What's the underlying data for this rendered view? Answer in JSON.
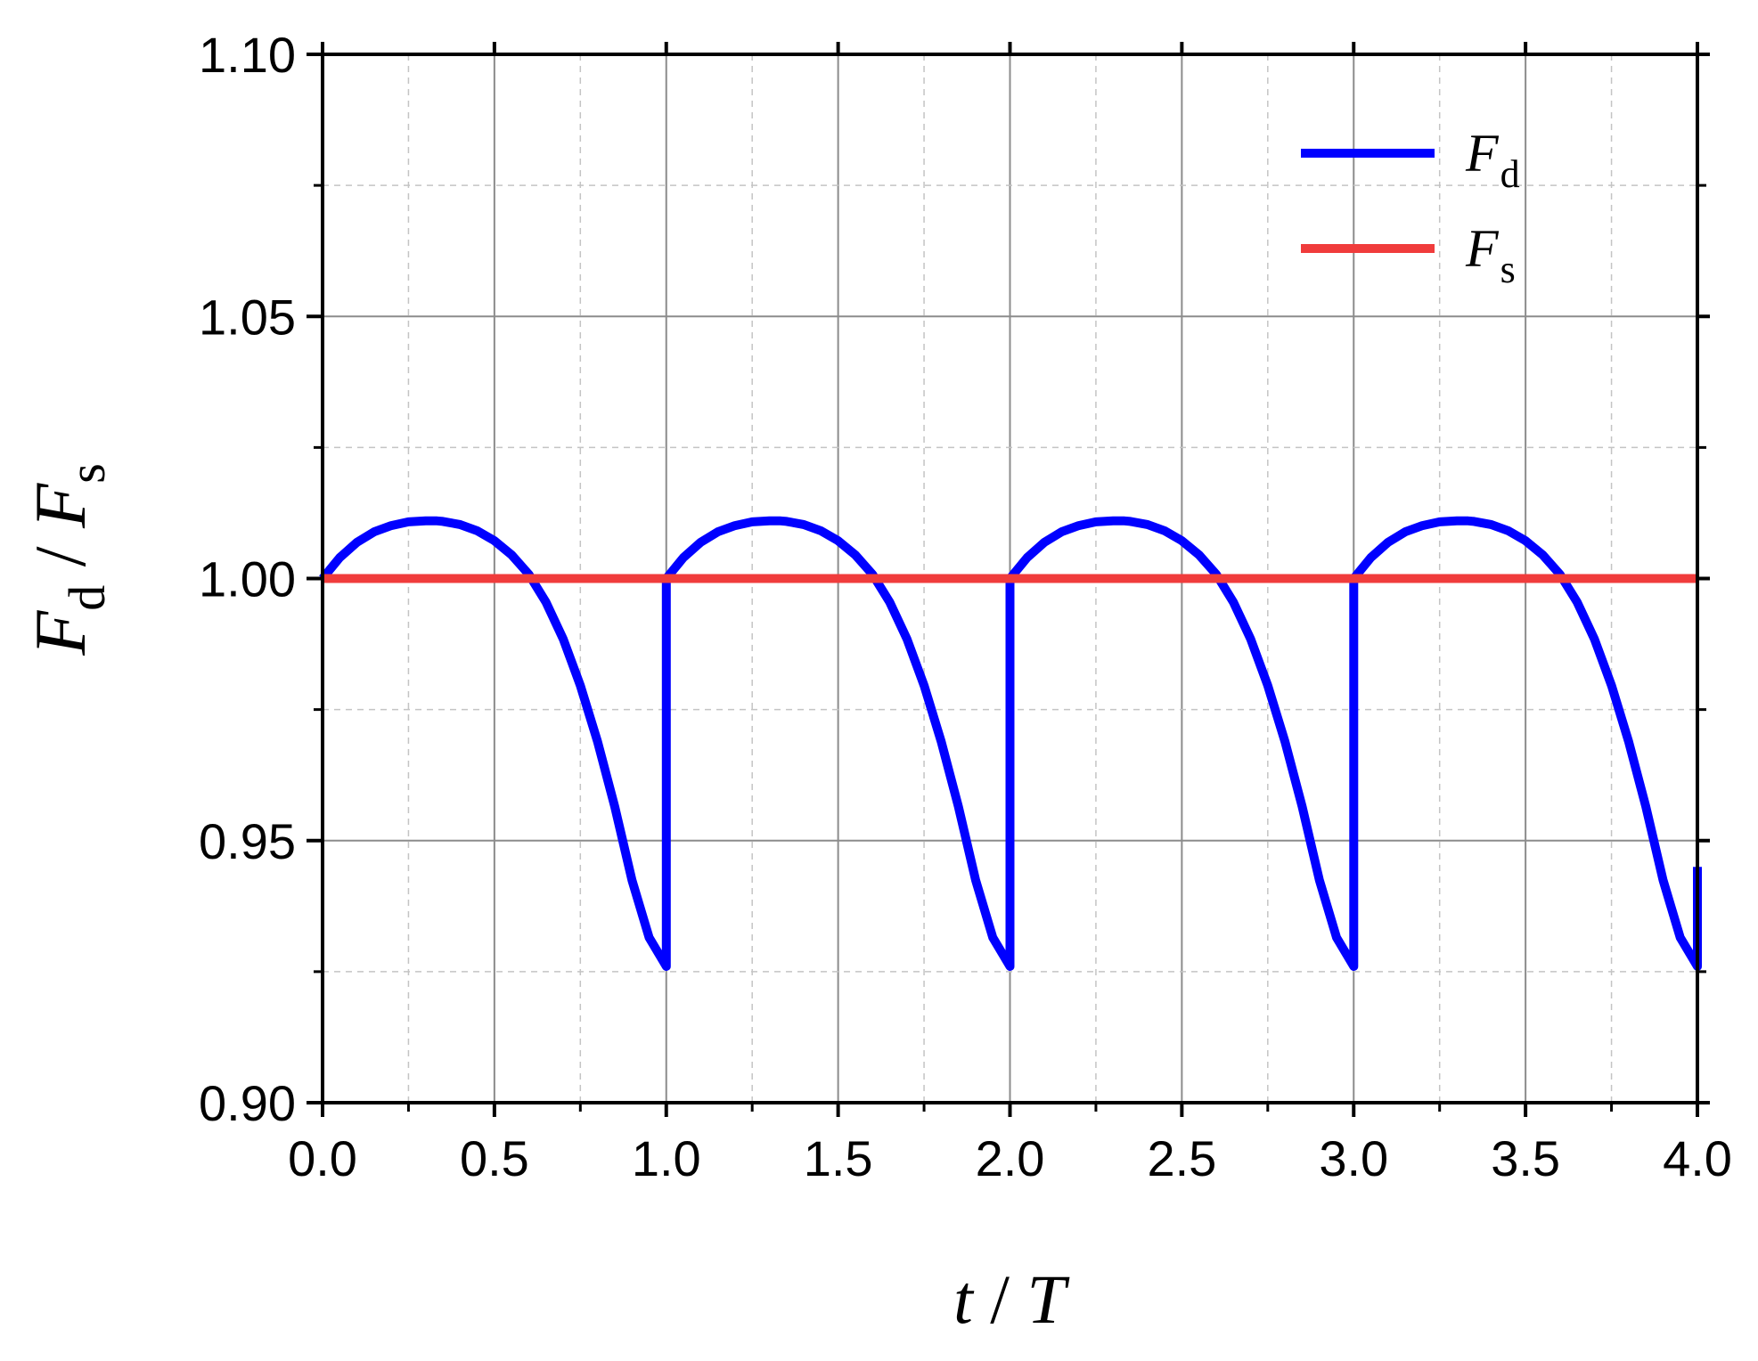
{
  "chart_data": {
    "type": "line",
    "xlabel": {
      "main": "t",
      "sep": " / ",
      "main2": "T"
    },
    "ylabel": {
      "var1": "F",
      "sub1": "d",
      "sep": "  /  ",
      "var2": "F",
      "sub2": "s"
    },
    "xlim": [
      0,
      4
    ],
    "ylim": [
      0.9,
      1.1
    ],
    "x_ticks": [
      "0.0",
      "0.5",
      "1.0",
      "1.5",
      "2.0",
      "2.5",
      "3.0",
      "3.5",
      "4.0"
    ],
    "y_ticks": [
      "0.90",
      "0.95",
      "1.00",
      "1.05",
      "1.10"
    ],
    "grid": true,
    "legend_position": "top-right",
    "series": [
      {
        "name": "F_d",
        "legend": {
          "var": "F",
          "sub": "d"
        },
        "color": "#0000ff",
        "x": [
          0,
          0.05,
          0.1,
          0.15,
          0.2,
          0.25,
          0.3,
          0.333,
          0.35,
          0.4,
          0.45,
          0.5,
          0.55,
          0.6,
          0.65,
          0.7,
          0.75,
          0.8,
          0.85,
          0.9,
          0.95,
          1.0,
          1.0,
          1.05,
          1.1,
          1.15,
          1.2,
          1.25,
          1.3,
          1.333,
          1.35,
          1.4,
          1.45,
          1.5,
          1.55,
          1.6,
          1.65,
          1.7,
          1.75,
          1.8,
          1.85,
          1.9,
          1.95,
          2.0,
          2.0,
          2.05,
          2.1,
          2.15,
          2.2,
          2.25,
          2.3,
          2.333,
          2.35,
          2.4,
          2.45,
          2.5,
          2.55,
          2.6,
          2.65,
          2.7,
          2.75,
          2.8,
          2.85,
          2.9,
          2.95,
          3.0,
          3.0,
          3.05,
          3.1,
          3.15,
          3.2,
          3.25,
          3.3,
          3.333,
          3.35,
          3.4,
          3.45,
          3.5,
          3.55,
          3.6,
          3.65,
          3.7,
          3.75,
          3.8,
          3.85,
          3.9,
          3.95,
          4.0,
          4.0
        ],
        "y": [
          1.0,
          1.004,
          1.0069,
          1.0089,
          1.0101,
          1.0108,
          1.011,
          1.011,
          1.0109,
          1.0103,
          1.0091,
          1.0072,
          1.0045,
          1.0008,
          0.9955,
          0.9885,
          0.9796,
          0.9689,
          0.9565,
          0.9425,
          0.9315,
          0.926,
          1.0,
          1.004,
          1.0069,
          1.0089,
          1.0101,
          1.0108,
          1.011,
          1.011,
          1.0109,
          1.0103,
          1.0091,
          1.0072,
          1.0045,
          1.0008,
          0.9955,
          0.9885,
          0.9796,
          0.9689,
          0.9565,
          0.9425,
          0.9315,
          0.926,
          1.0,
          1.004,
          1.0069,
          1.0089,
          1.0101,
          1.0108,
          1.011,
          1.011,
          1.0109,
          1.0103,
          1.0091,
          1.0072,
          1.0045,
          1.0008,
          0.9955,
          0.9885,
          0.9796,
          0.9689,
          0.9565,
          0.9425,
          0.9315,
          0.926,
          1.0,
          1.004,
          1.0069,
          1.0089,
          1.0101,
          1.0108,
          1.011,
          1.011,
          1.0109,
          1.0103,
          1.0091,
          1.0072,
          1.0045,
          1.0008,
          0.9955,
          0.9885,
          0.9796,
          0.9689,
          0.9565,
          0.9425,
          0.9315,
          0.926,
          0.945
        ]
      },
      {
        "name": "F_s",
        "legend": {
          "var": "F",
          "sub": "s"
        },
        "color": "#f03c3c",
        "x": [
          0,
          4
        ],
        "y": [
          1.0,
          1.0
        ]
      }
    ]
  }
}
